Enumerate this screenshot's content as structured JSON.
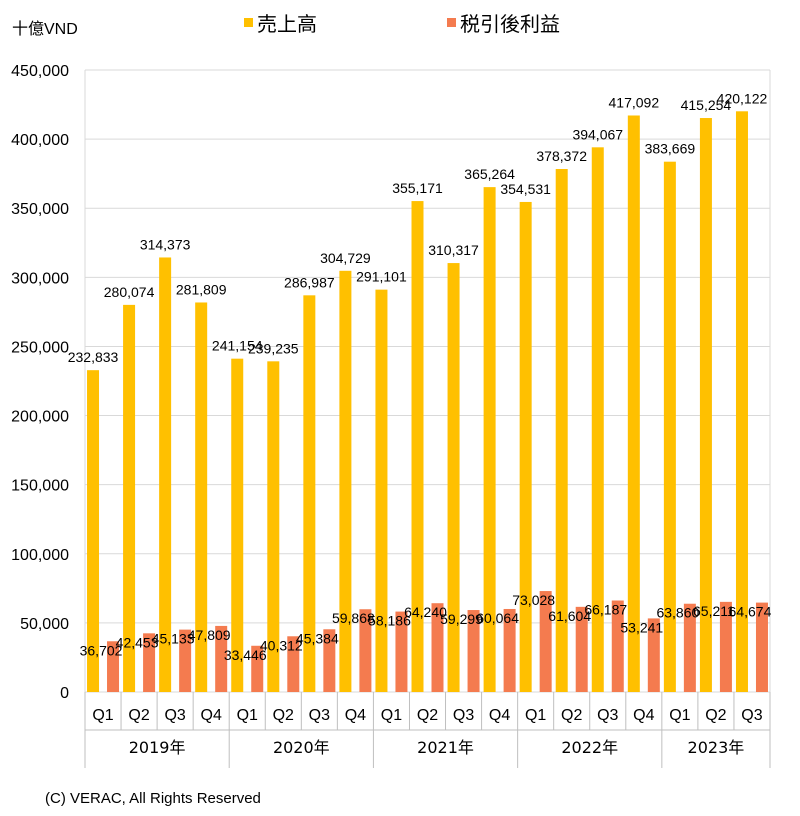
{
  "unit_label": "十億VND",
  "footer": "(C) VERAC, All Rights Reserved",
  "colors": {
    "sales": "#FFC000",
    "profit": "#F47B4F",
    "grid": "#D9D9D9",
    "axis": "#BFBFBF"
  },
  "chart_data": {
    "type": "bar",
    "ylim": [
      0,
      450000
    ],
    "yticks": [
      "0",
      "50,000",
      "100,000",
      "150,000",
      "200,000",
      "250,000",
      "300,000",
      "350,000",
      "400,000",
      "450,000"
    ],
    "ytick_values": [
      0,
      50000,
      100000,
      150000,
      200000,
      250000,
      300000,
      350000,
      400000,
      450000
    ],
    "grid": true,
    "legend_position": "top-center",
    "categories": [
      "Q1",
      "Q2",
      "Q3",
      "Q4",
      "Q1",
      "Q2",
      "Q3",
      "Q4",
      "Q1",
      "Q2",
      "Q3",
      "Q4",
      "Q1",
      "Q2",
      "Q3",
      "Q4",
      "Q1",
      "Q2",
      "Q3"
    ],
    "groups": [
      {
        "label": "2019年",
        "count": 4
      },
      {
        "label": "2020年",
        "count": 4
      },
      {
        "label": "2021年",
        "count": 4
      },
      {
        "label": "2022年",
        "count": 4
      },
      {
        "label": "2023年",
        "count": 3
      }
    ],
    "series": [
      {
        "name": "売上高",
        "values": [
          232833,
          280074,
          314373,
          281809,
          241154,
          239235,
          286987,
          304729,
          291101,
          355171,
          310317,
          365264,
          354531,
          378372,
          394067,
          417092,
          383669,
          415254,
          420122
        ],
        "labels": [
          "232,833",
          "280,074",
          "314,373",
          "281,809",
          "241,154",
          "239,235",
          "286,987",
          "304,729",
          "291,101",
          "355,171",
          "310,317",
          "365,264",
          "354,531",
          "378,372",
          "394,067",
          "417,092",
          "383,669",
          "415,254",
          "420,122"
        ]
      },
      {
        "name": "税引後利益",
        "values": [
          36702,
          42453,
          45133,
          47809,
          33446,
          40312,
          45384,
          59868,
          58186,
          64240,
          59299,
          60064,
          73028,
          61604,
          66187,
          53241,
          63860,
          65211,
          64674
        ],
        "labels": [
          "36,702",
          "42,453",
          "45,133",
          "47,809",
          "33,446",
          "40,312",
          "45,384",
          "59,868",
          "58,186",
          "64,240",
          "59,299",
          "60,064",
          "73,028",
          "61,604",
          "66,187",
          "53,241",
          "63,860",
          "65,211",
          "64,674"
        ]
      }
    ]
  }
}
